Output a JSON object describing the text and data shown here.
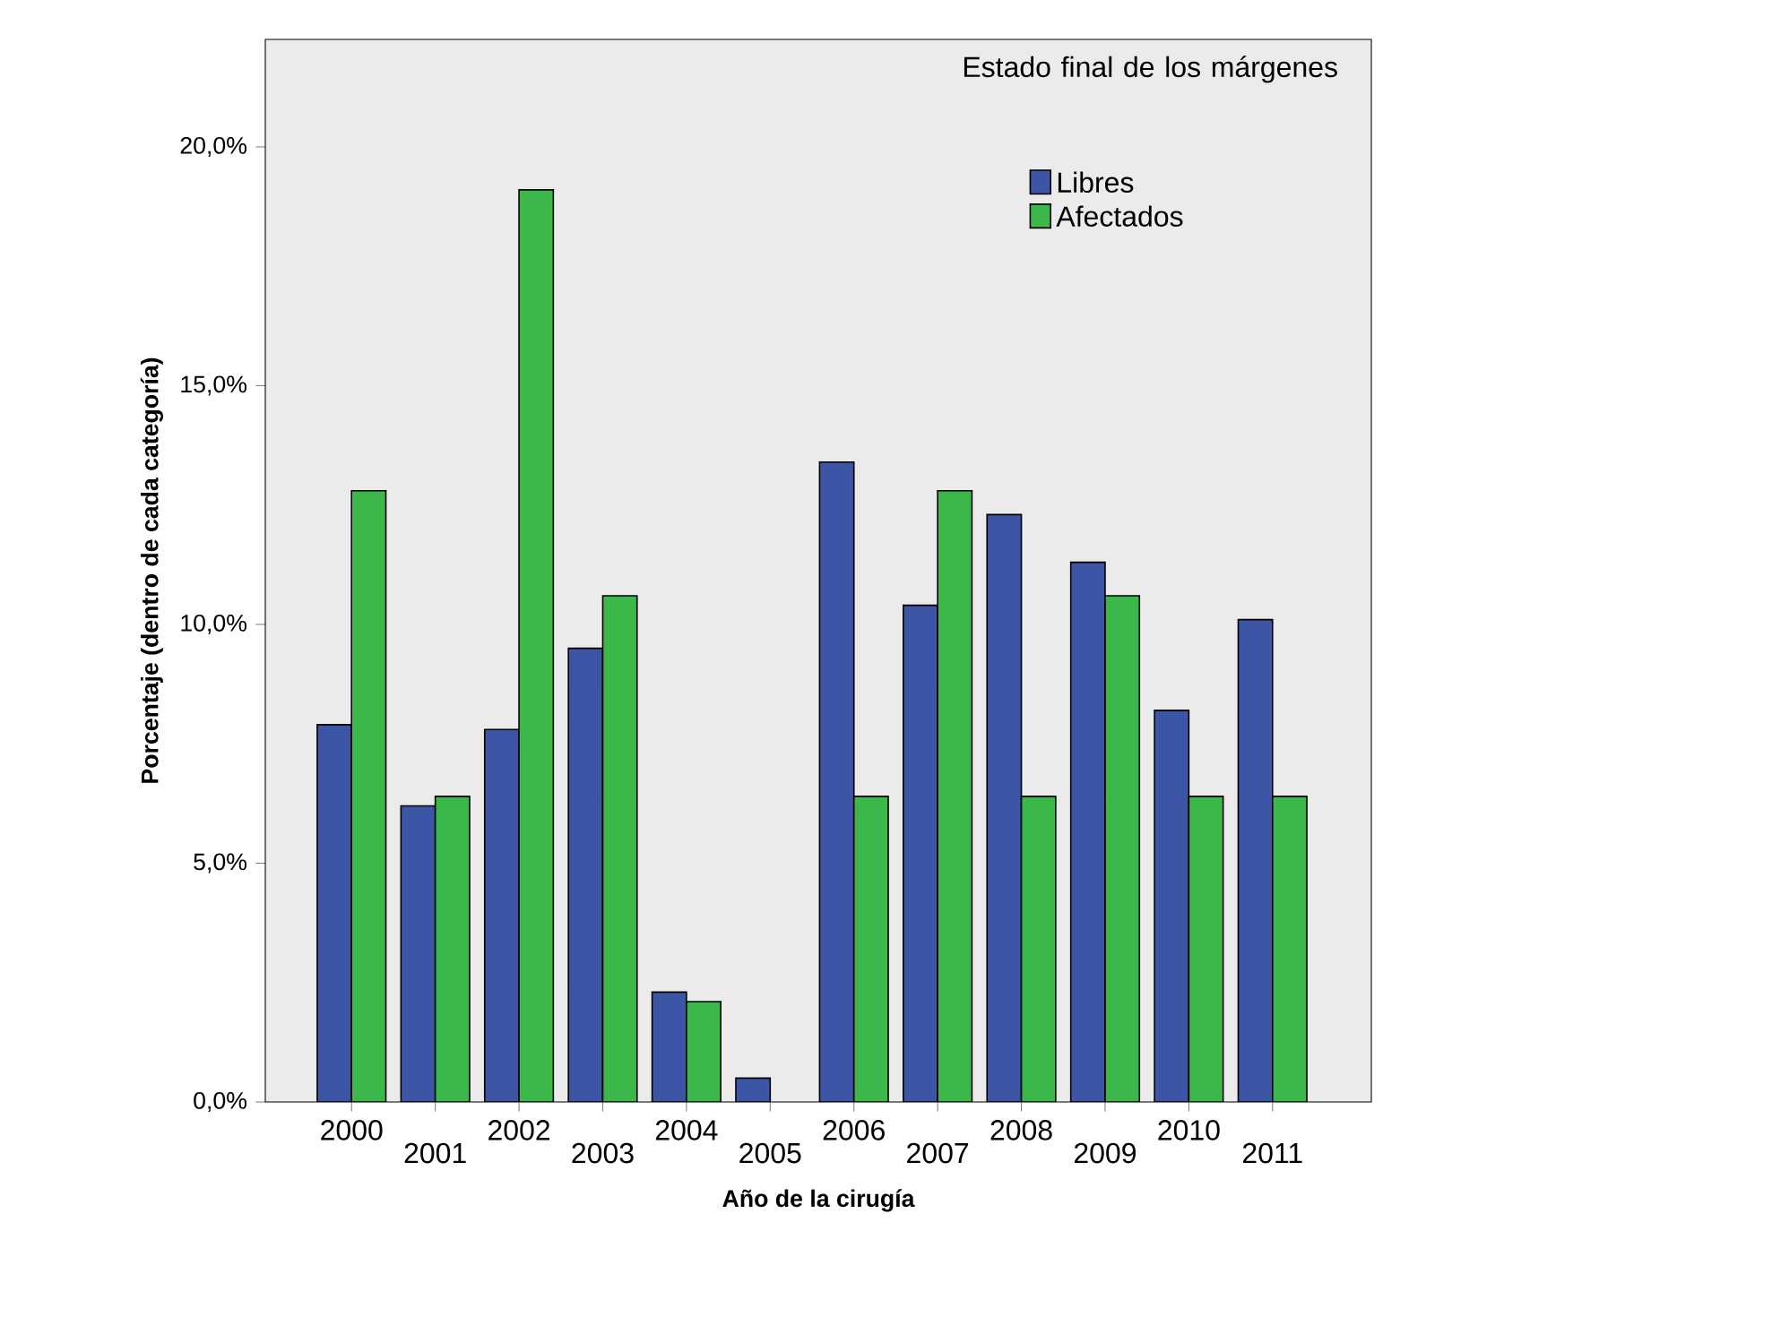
{
  "chart_data": {
    "type": "bar",
    "xlabel": "Año de la cirugía",
    "ylabel": "Porcentaje (dentro de cada categoría)",
    "legend_title": "Estado final de los márgenes",
    "categories": [
      "2000",
      "2001",
      "2002",
      "2003",
      "2004",
      "2005",
      "2006",
      "2007",
      "2008",
      "2009",
      "2010",
      "2011"
    ],
    "series": [
      {
        "name": "Libres",
        "color": "#3c55a5",
        "values": [
          7.9,
          6.2,
          7.8,
          9.5,
          2.3,
          0.5,
          13.4,
          10.4,
          12.3,
          11.3,
          8.2,
          10.1
        ]
      },
      {
        "name": "Afectados",
        "color": "#3cb84a",
        "values": [
          12.8,
          6.4,
          19.1,
          10.6,
          2.1,
          null,
          6.4,
          12.8,
          6.4,
          10.6,
          6.4,
          6.4
        ]
      }
    ],
    "ylim": [
      0,
      22.25
    ],
    "yticks": [
      {
        "value": 0,
        "label": "0,0%"
      },
      {
        "value": 5,
        "label": "5,0%"
      },
      {
        "value": 10,
        "label": "10,0%"
      },
      {
        "value": 15,
        "label": "15,0%"
      },
      {
        "value": 20,
        "label": "20,0%"
      }
    ],
    "grid": false,
    "legend": "top right"
  }
}
